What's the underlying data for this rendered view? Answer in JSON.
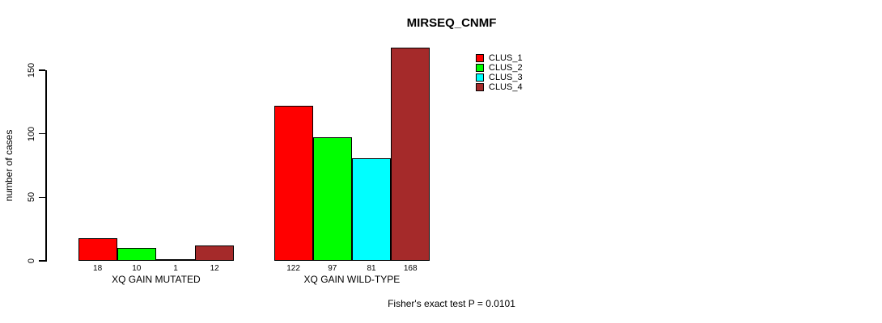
{
  "chart_data": {
    "type": "bar",
    "title": "MIRSEQ_CNMF",
    "ylabel": "number of cases",
    "xlabel": "",
    "ylim": [
      0,
      150
    ],
    "yticks": [
      0,
      50,
      100,
      150
    ],
    "grid": false,
    "legend_position": "top-right",
    "categories": [
      "XQ GAIN MUTATED",
      "XQ GAIN WILD-TYPE"
    ],
    "series": [
      {
        "name": "CLUS_1",
        "color": "#ff0000",
        "values": [
          18,
          122
        ]
      },
      {
        "name": "CLUS_2",
        "color": "#00ff00",
        "values": [
          10,
          97
        ]
      },
      {
        "name": "CLUS_3",
        "color": "#00ffff",
        "values": [
          1,
          81
        ]
      },
      {
        "name": "CLUS_4",
        "color": "#a52a2a",
        "values": [
          12,
          168
        ]
      }
    ],
    "bar_value_labels": [
      [
        "18",
        "10",
        "1",
        "12"
      ],
      [
        "122",
        "97",
        "81",
        "168"
      ]
    ],
    "annotation": "Fisher's exact test P = 0.0101",
    "colors": {
      "axis": "#000000",
      "background": "#ffffff",
      "text": "#000000"
    }
  }
}
